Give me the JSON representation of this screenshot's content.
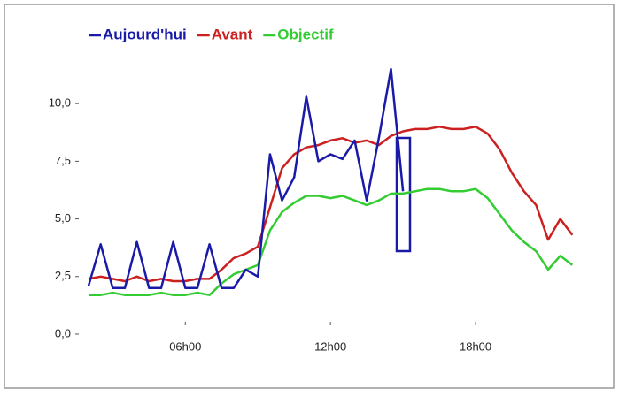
{
  "chart_data": {
    "type": "line",
    "x": [
      2,
      2.5,
      3,
      3.5,
      4,
      4.5,
      5,
      5.5,
      6,
      6.5,
      7,
      7.5,
      8,
      8.5,
      9,
      9.5,
      10,
      10.5,
      11,
      11.5,
      12,
      12.5,
      13,
      13.5,
      14,
      14.5,
      15,
      15.5,
      16,
      16.5,
      17,
      17.5,
      18,
      18.5,
      19,
      19.5,
      20,
      20.5,
      21,
      21.5,
      22
    ],
    "series": [
      {
        "name": "Aujourd'hui",
        "color": "#1a1aa8",
        "values": [
          2.1,
          3.9,
          2.0,
          2.0,
          4.0,
          2.0,
          2.0,
          4.0,
          2.0,
          2.0,
          3.9,
          2.0,
          2.0,
          2.8,
          2.5,
          7.8,
          5.8,
          6.8,
          10.3,
          7.5,
          7.8,
          7.6,
          8.4,
          5.8,
          8.5,
          11.5,
          6.2,
          null,
          null,
          null,
          null,
          null,
          null,
          null,
          null,
          null,
          null,
          null,
          null,
          null,
          null
        ]
      },
      {
        "name": "Avant",
        "color": "#cc2020",
        "values": [
          2.4,
          2.5,
          2.4,
          2.3,
          2.5,
          2.3,
          2.4,
          2.3,
          2.3,
          2.4,
          2.4,
          2.8,
          3.3,
          3.5,
          3.8,
          5.5,
          7.2,
          7.8,
          8.1,
          8.2,
          8.4,
          8.5,
          8.3,
          8.4,
          8.2,
          8.6,
          8.8,
          8.9,
          8.9,
          9.0,
          8.9,
          8.9,
          9.0,
          8.7,
          8.0,
          7.0,
          6.2,
          5.6,
          4.1,
          5.0,
          4.3
        ]
      },
      {
        "name": "Objectif",
        "color": "#33cc33",
        "values": [
          1.7,
          1.7,
          1.8,
          1.7,
          1.7,
          1.7,
          1.8,
          1.7,
          1.7,
          1.8,
          1.7,
          2.2,
          2.6,
          2.8,
          3.0,
          4.5,
          5.3,
          5.7,
          6.0,
          6.0,
          5.9,
          6.0,
          5.8,
          5.6,
          5.8,
          6.1,
          6.1,
          6.2,
          6.3,
          6.3,
          6.2,
          6.2,
          6.3,
          5.9,
          5.2,
          4.5,
          4.0,
          3.6,
          2.8,
          3.4,
          3.0
        ]
      }
    ],
    "xlim": [
      2,
      22.5
    ],
    "xticks": [
      {
        "value": 6,
        "label": "06h00"
      },
      {
        "value": 12,
        "label": "12h00"
      },
      {
        "value": 18,
        "label": "18h00"
      }
    ],
    "ylim": [
      0,
      12
    ],
    "yticks": [
      {
        "value": 0,
        "label": "0,0"
      },
      {
        "value": 2.5,
        "label": "2,5"
      },
      {
        "value": 5,
        "label": "5,0"
      },
      {
        "value": 7.5,
        "label": "7,5"
      },
      {
        "value": 10,
        "label": "10,0"
      }
    ]
  }
}
